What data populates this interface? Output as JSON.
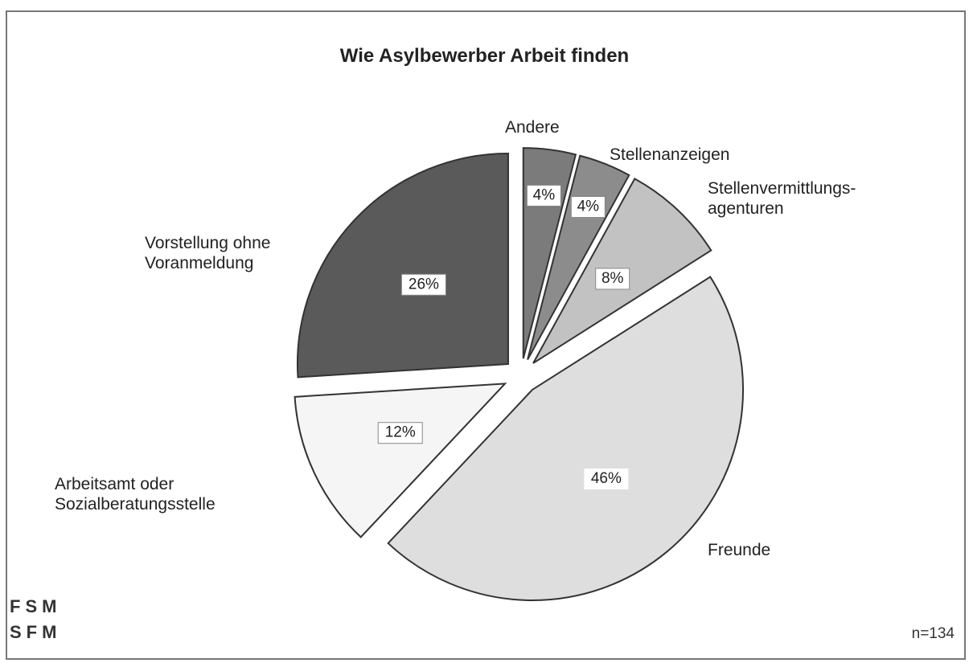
{
  "chart_data": {
    "type": "pie",
    "title": "Wie Asylbewerber Arbeit finden",
    "categories": [
      "Andere",
      "Stellenanzeigen",
      "Stellenvermittlungs-\nagenturen",
      "Freunde",
      "Arbeitsamt oder\nSozialberatungsstelle",
      "Vorstellung ohne\nVoranmeldung"
    ],
    "values": [
      4,
      4,
      8,
      46,
      12,
      26
    ],
    "value_labels": [
      "4%",
      "4%",
      "8%",
      "46%",
      "12%",
      "26%"
    ],
    "colors": [
      "#7b7b7b",
      "#8c8c8c",
      "#c2c2c2",
      "#dedede",
      "#f5f5f5",
      "#5a5a5a"
    ],
    "annotation": "n=134",
    "logo": [
      "FSM",
      "SFM"
    ]
  }
}
